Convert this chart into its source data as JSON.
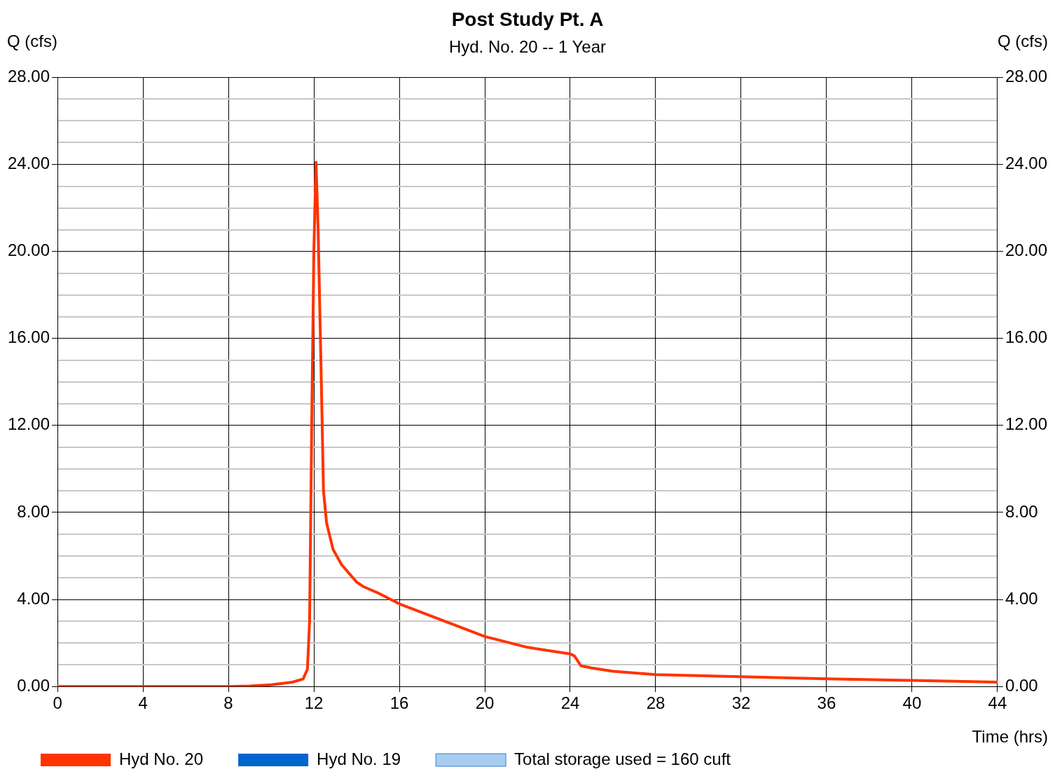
{
  "chart_data": {
    "type": "line",
    "title": "Post Study Pt. A",
    "subtitle": "Hyd. No. 20 -- 1 Year",
    "xlabel": "Time (hrs)",
    "ylabel": "Q (cfs)",
    "y2label": "Q (cfs)",
    "xlim": [
      0,
      44
    ],
    "xticks": [
      0,
      4,
      8,
      12,
      16,
      20,
      24,
      28,
      32,
      36,
      40,
      44
    ],
    "ylim": [
      0,
      28
    ],
    "yticks": [
      {
        "value": 0,
        "label": "0.00"
      },
      {
        "value": 1,
        "label": null
      },
      {
        "value": 2,
        "label": null
      },
      {
        "value": 3,
        "label": null
      },
      {
        "value": 4,
        "label": "4.00"
      },
      {
        "value": 5,
        "label": null
      },
      {
        "value": 6,
        "label": null
      },
      {
        "value": 7,
        "label": null
      },
      {
        "value": 8,
        "label": "8.00"
      },
      {
        "value": 9,
        "label": null
      },
      {
        "value": 10,
        "label": null
      },
      {
        "value": 11,
        "label": null
      },
      {
        "value": 12,
        "label": "12.00"
      },
      {
        "value": 13,
        "label": null
      },
      {
        "value": 14,
        "label": null
      },
      {
        "value": 15,
        "label": null
      },
      {
        "value": 16,
        "label": "16.00"
      },
      {
        "value": 17,
        "label": null
      },
      {
        "value": 18,
        "label": null
      },
      {
        "value": 19,
        "label": null
      },
      {
        "value": 20,
        "label": "20.00"
      },
      {
        "value": 21,
        "label": null
      },
      {
        "value": 22,
        "label": null
      },
      {
        "value": 23,
        "label": null
      },
      {
        "value": 24,
        "label": "24.00"
      },
      {
        "value": 25,
        "label": null
      },
      {
        "value": 26,
        "label": null
      },
      {
        "value": 27,
        "label": null
      },
      {
        "value": 28,
        "label": "28.00"
      }
    ],
    "y2lim": [
      0,
      28
    ],
    "y2ticks": [
      {
        "value": 0,
        "label": "0.00"
      },
      {
        "value": 4,
        "label": "4.00"
      },
      {
        "value": 8,
        "label": "8.00"
      },
      {
        "value": 12,
        "label": "12.00"
      },
      {
        "value": 16,
        "label": "16.00"
      },
      {
        "value": 20,
        "label": "20.00"
      },
      {
        "value": 24,
        "label": "24.00"
      },
      {
        "value": 28,
        "label": "28.00"
      }
    ],
    "grid": true,
    "legend": "bottom",
    "marker": "none",
    "series": [
      {
        "name": "Hyd No. 20",
        "color": "#ff3300",
        "x": [
          0,
          8,
          9,
          10,
          11,
          11.5,
          11.7,
          11.8,
          11.9,
          12.0,
          12.1,
          12.2,
          12.35,
          12.45,
          12.6,
          12.9,
          13.3,
          14.0,
          14.3,
          15,
          16,
          18,
          20,
          22,
          24,
          24.2,
          24.5,
          25,
          26,
          28,
          32,
          36,
          40,
          44
        ],
        "values": [
          0,
          0,
          0.02,
          0.08,
          0.2,
          0.35,
          0.8,
          3,
          12,
          20,
          24.1,
          21,
          14,
          9,
          7.5,
          6.3,
          5.6,
          4.8,
          4.6,
          4.3,
          3.8,
          3.05,
          2.3,
          1.8,
          1.5,
          1.4,
          0.95,
          0.85,
          0.7,
          0.55,
          0.45,
          0.35,
          0.28,
          0.2
        ]
      },
      {
        "name": "Hyd No. 19",
        "color": "#0066cc"
      },
      {
        "name": "Total storage used = 160 cuft",
        "type": "area",
        "color": "#a8cdf0"
      }
    ]
  }
}
